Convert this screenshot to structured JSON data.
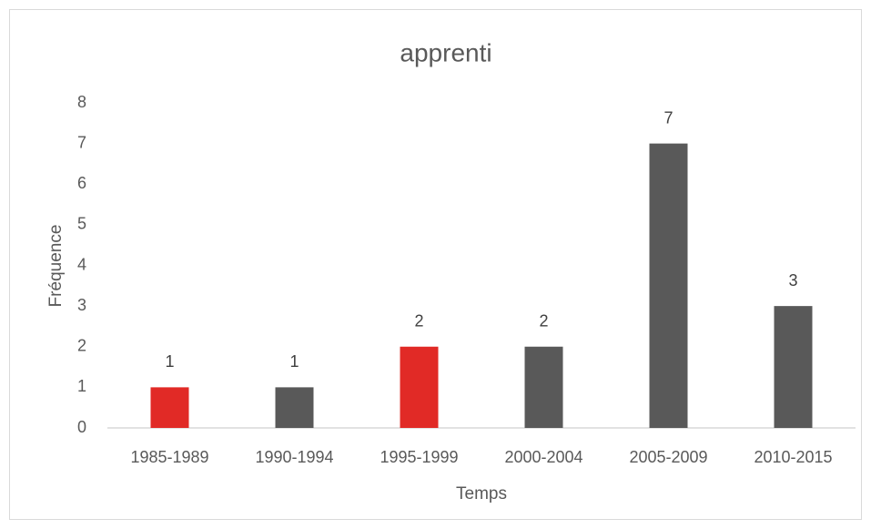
{
  "chart_data": {
    "type": "bar",
    "title": "apprenti",
    "x_label": "Temps",
    "y_label": "Fréquence",
    "categories": [
      "1985-1989",
      "1990-1994",
      "1995-1999",
      "2000-2004",
      "2005-2009",
      "2010-2015"
    ],
    "values": [
      1,
      1,
      2,
      2,
      7,
      3
    ],
    "colors": [
      "#e12a26",
      "#595959",
      "#e12a26",
      "#595959",
      "#595959",
      "#595959"
    ],
    "ylim": [
      0,
      8
    ],
    "yticks": [
      0,
      1,
      2,
      3,
      4,
      5,
      6,
      7,
      8
    ],
    "grid": false
  }
}
